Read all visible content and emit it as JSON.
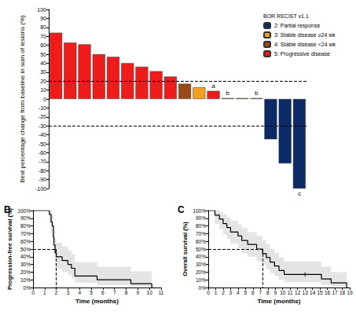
{
  "chart_data": [
    {
      "type": "bar",
      "y_label": "Best percentage change from baseline in sum of lesions (%)",
      "legend_title": "BOR RECIST v1.1",
      "legend": "upper right",
      "stacked": true,
      "categories": [
        null,
        null,
        null,
        null,
        null,
        null,
        null,
        null,
        null,
        null,
        null,
        null,
        null,
        null,
        null,
        null,
        null,
        null
      ],
      "series": [
        {
          "name": "2: Partial response",
          "color": "#0c2a66",
          "values": [
            null,
            null,
            null,
            null,
            null,
            null,
            null,
            null,
            null,
            null,
            null,
            null,
            null,
            null,
            null,
            -45,
            -72,
            -100
          ]
        },
        {
          "name": "3: Stable disease ≥24 wk",
          "color": "#f2a023",
          "values": [
            null,
            null,
            null,
            null,
            null,
            null,
            null,
            null,
            null,
            null,
            13,
            null,
            null,
            null,
            null,
            null,
            null,
            null
          ]
        },
        {
          "name": "4: Stable disease <24 wk",
          "color": "#9a4a16",
          "values": [
            null,
            null,
            null,
            null,
            null,
            null,
            null,
            null,
            null,
            17,
            null,
            null,
            1,
            1,
            1,
            null,
            null,
            null
          ]
        },
        {
          "name": "5: Progressive disease",
          "color": "#f01c1c",
          "values": [
            74,
            63,
            61,
            50,
            47,
            40,
            36,
            31,
            25,
            null,
            null,
            9,
            null,
            null,
            null,
            null,
            null,
            null
          ]
        }
      ],
      "annotations": [
        null,
        null,
        null,
        null,
        null,
        null,
        null,
        null,
        null,
        null,
        null,
        "a",
        "b",
        null,
        "b",
        null,
        null,
        "c"
      ],
      "reference_lines": [
        20,
        -30
      ],
      "ylim": [
        -100,
        100
      ],
      "yticks": [
        -100,
        -90,
        -80,
        -70,
        -60,
        -50,
        -40,
        -30,
        -20,
        -10,
        0,
        10,
        20,
        30,
        40,
        50,
        60,
        70,
        80,
        90,
        100
      ],
      "tick_labels": "y",
      "grid": false
    },
    {
      "type": "line",
      "panel_label": "B",
      "x_label": "Time (months)",
      "y_label": "Progression-free survival (%)",
      "line_style": "step",
      "color": "#000000",
      "x": [
        0,
        1.4,
        1.55,
        1.65,
        1.75,
        1.8,
        1.9,
        2,
        2.5,
        3,
        3.3,
        3.6,
        5.5,
        8.4,
        10.2
      ],
      "values": [
        100,
        95,
        85,
        80,
        65,
        55,
        45,
        40,
        35,
        30,
        25,
        15,
        10,
        5,
        0
      ],
      "ci_lower": [
        100,
        85,
        72,
        65,
        48,
        38,
        29,
        24,
        20,
        16,
        12,
        6,
        3,
        1,
        0
      ],
      "ci_upper": [
        100,
        100,
        98,
        94,
        82,
        73,
        63,
        58,
        53,
        48,
        43,
        33,
        27,
        21,
        0
      ],
      "median": {
        "x": 2,
        "y": 50
      },
      "xlim": [
        0,
        11
      ],
      "xticks": [
        0,
        1,
        2,
        3,
        4,
        5,
        6,
        7,
        8,
        9,
        10,
        11
      ],
      "ylim": [
        0,
        100
      ],
      "yticks": [
        {
          "value": 0,
          "label": "0%"
        },
        {
          "value": 10,
          "label": "10%"
        },
        {
          "value": 20,
          "label": "20%"
        },
        {
          "value": 30,
          "label": "30%"
        },
        {
          "value": 40,
          "label": "40%"
        },
        {
          "value": 50,
          "label": "50%"
        },
        {
          "value": 60,
          "label": "60%"
        },
        {
          "value": 70,
          "label": "70%"
        },
        {
          "value": 80,
          "label": "80%"
        },
        {
          "value": 90,
          "label": "90%"
        },
        {
          "value": 100,
          "label": "100%"
        }
      ],
      "grid": false
    },
    {
      "type": "line",
      "panel_label": "C",
      "x_label": "Time (months)",
      "y_label": "Overall survival (%)",
      "line_style": "step",
      "color": "#000000",
      "x": [
        0,
        0.9,
        1.5,
        2,
        2.5,
        3,
        4,
        4.5,
        5.3,
        6.5,
        7.3,
        7.8,
        8.3,
        8.9,
        9.5,
        10.2,
        15.2,
        16.5,
        18.6
      ],
      "values": [
        100,
        94,
        89,
        83,
        78,
        72,
        67,
        61,
        56,
        50,
        44,
        39,
        33,
        28,
        22,
        17,
        11,
        6,
        0
      ],
      "ci_lower": [
        100,
        83,
        76,
        69,
        63,
        57,
        51,
        45,
        40,
        34,
        29,
        24,
        19,
        15,
        10,
        7,
        3,
        1,
        0
      ],
      "ci_upper": [
        100,
        100,
        98,
        95,
        91,
        87,
        82,
        77,
        72,
        67,
        61,
        56,
        50,
        45,
        39,
        34,
        27,
        20,
        0
      ],
      "censored": {
        "x": [
          13
        ],
        "values": [
          17
        ],
        "marker": "cross"
      },
      "median": {
        "x": 7.3,
        "y": 50
      },
      "xlim": [
        0,
        19
      ],
      "xticks": [
        0,
        1,
        2,
        3,
        4,
        5,
        6,
        7,
        8,
        9,
        10,
        11,
        12,
        13,
        14,
        15,
        16,
        17,
        18,
        19
      ],
      "ylim": [
        0,
        100
      ],
      "yticks": [
        {
          "value": 0,
          "label": "0%"
        },
        {
          "value": 10,
          "label": "10%"
        },
        {
          "value": 20,
          "label": "20%"
        },
        {
          "value": 30,
          "label": "30%"
        },
        {
          "value": 40,
          "label": "40%"
        },
        {
          "value": 50,
          "label": "50%"
        },
        {
          "value": 60,
          "label": "60%"
        },
        {
          "value": 70,
          "label": "70%"
        },
        {
          "value": 80,
          "label": "80%"
        },
        {
          "value": 90,
          "label": "90%"
        },
        {
          "value": 100,
          "label": "100%"
        }
      ],
      "grid": false
    }
  ]
}
